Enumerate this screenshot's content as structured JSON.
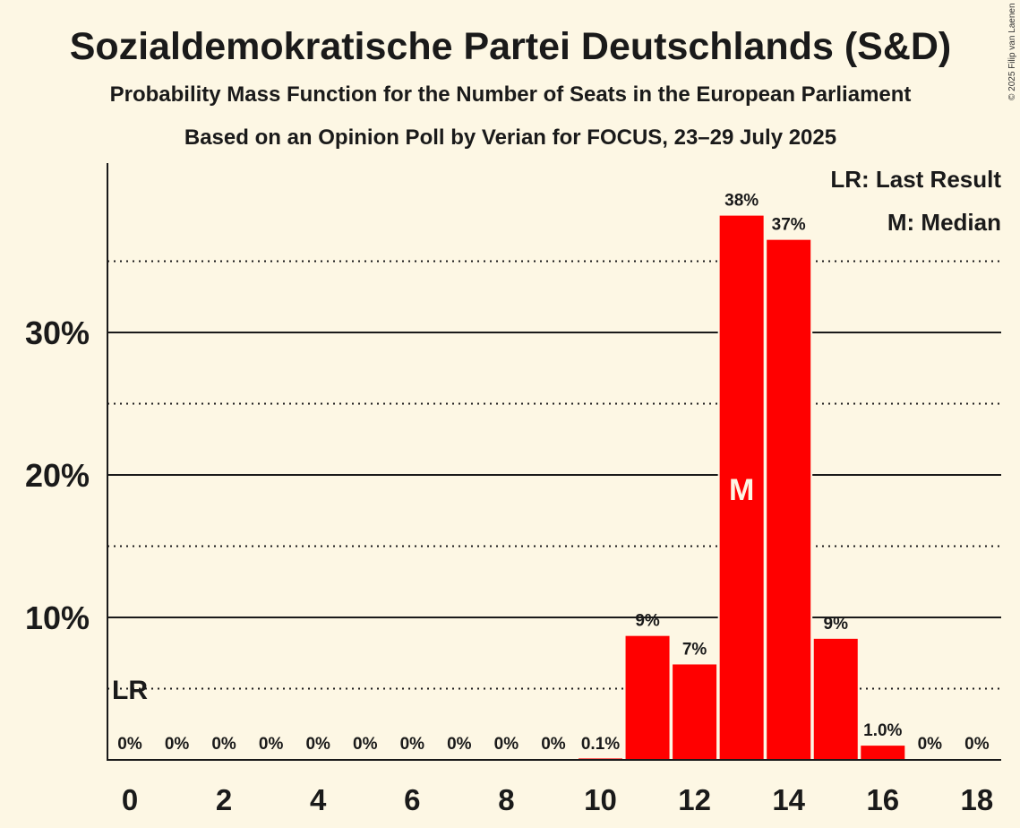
{
  "copyright": "© 2025 Filip van Laenen",
  "chart_data": {
    "type": "bar",
    "title": "Sozialdemokratische Partei Deutschlands (S&D)",
    "subtitle": "Probability Mass Function for the Number of Seats in the European Parliament",
    "subtitle2": "Based on an Opinion Poll by Verian for FOCUS, 23–29 July 2025",
    "categories": [
      0,
      1,
      2,
      3,
      4,
      5,
      6,
      7,
      8,
      9,
      10,
      11,
      12,
      13,
      14,
      15,
      16,
      17,
      18
    ],
    "values": [
      0,
      0,
      0,
      0,
      0,
      0,
      0,
      0,
      0,
      0,
      0.1,
      8.7,
      6.7,
      38.2,
      36.5,
      8.5,
      1.0,
      0,
      0
    ],
    "value_labels": [
      "0%",
      "0%",
      "0%",
      "0%",
      "0%",
      "0%",
      "0%",
      "0%",
      "0%",
      "0%",
      "0.1%",
      "9%",
      "7%",
      "38%",
      "37%",
      "9%",
      "1.0%",
      "0%",
      "0%"
    ],
    "x_tick_labels": [
      "0",
      "2",
      "4",
      "6",
      "8",
      "10",
      "12",
      "14",
      "16",
      "18"
    ],
    "x_tick_values": [
      0,
      2,
      4,
      6,
      8,
      10,
      12,
      14,
      16,
      18
    ],
    "y_tick_labels": [
      "10%",
      "20%",
      "30%"
    ],
    "y_tick_values": [
      10,
      20,
      30
    ],
    "y_dotted_values": [
      5,
      15,
      25,
      35
    ],
    "ylim": [
      0,
      41.8
    ],
    "bar_color": "#ff0000",
    "last_result_seat": 0,
    "last_result_marker": "LR",
    "median_seat": 13,
    "median_marker": "M",
    "legend": [
      "LR: Last Result",
      "M: Median"
    ],
    "legend_position": "top-right",
    "grid": true
  }
}
